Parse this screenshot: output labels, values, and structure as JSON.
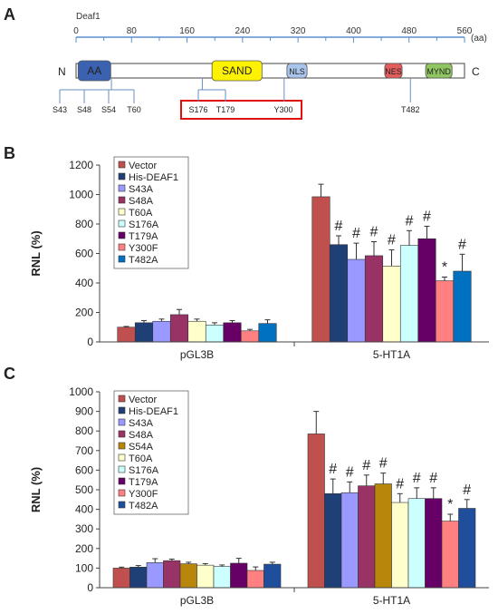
{
  "panel_a": {
    "letter": "A",
    "protein": "Deaf1",
    "unit": "(aa)",
    "scale_ticks": [
      0,
      80,
      160,
      240,
      320,
      400,
      480,
      560
    ],
    "scale_min": 0,
    "scale_max": 560,
    "n_term": "N",
    "c_term": "C",
    "domains": [
      {
        "name": "AA",
        "start": 3,
        "end": 50,
        "color": "#3a62b0",
        "text_color": "#ffffff"
      },
      {
        "name": "SAND",
        "start": 196,
        "end": 268,
        "color": "#fff200",
        "text_color": "#222222"
      },
      {
        "name": "NLS",
        "start": 304,
        "end": 333,
        "color": "#a9c5ec",
        "text_color": "#222222"
      },
      {
        "name": "NES",
        "start": 445,
        "end": 470,
        "color": "#e45c5c",
        "text_color": "#222222"
      },
      {
        "name": "MYND",
        "start": 504,
        "end": 542,
        "color": "#8fc661",
        "text_color": "#222222"
      }
    ],
    "sites": [
      {
        "label": "S43",
        "aa": 43,
        "group": "left"
      },
      {
        "label": "S48",
        "aa": 48,
        "group": "left"
      },
      {
        "label": "S54",
        "aa": 54,
        "group": "left"
      },
      {
        "label": "T60",
        "aa": 60,
        "group": "left"
      },
      {
        "label": "S176",
        "aa": 176,
        "group": "boxed"
      },
      {
        "label": "T179",
        "aa": 179,
        "group": "boxed"
      },
      {
        "label": "Y300",
        "aa": 300,
        "group": "boxed"
      },
      {
        "label": "T482",
        "aa": 482,
        "group": "right"
      }
    ]
  },
  "chart_data": [
    {
      "type": "bar",
      "panel": "B",
      "ylabel": "RNL (%)",
      "ylim": [
        0,
        1200
      ],
      "yticks": [
        0,
        200,
        400,
        600,
        800,
        1000,
        1200
      ],
      "categories": [
        "pGL3B",
        "5-HT1A"
      ],
      "series": [
        {
          "name": "Vector",
          "color": "#c0504d",
          "values": [
            100,
            985
          ],
          "errors": [
            5,
            85
          ],
          "marks": [
            "",
            ""
          ]
        },
        {
          "name": "His-DEAF1",
          "color": "#1f3f77",
          "values": [
            130,
            660
          ],
          "errors": [
            15,
            60
          ],
          "marks": [
            "",
            "#"
          ]
        },
        {
          "name": "S43A",
          "color": "#9999ff",
          "values": [
            140,
            560
          ],
          "errors": [
            15,
            110
          ],
          "marks": [
            "",
            "#"
          ]
        },
        {
          "name": "S48A",
          "color": "#993366",
          "values": [
            185,
            585
          ],
          "errors": [
            35,
            95
          ],
          "marks": [
            "",
            "#"
          ]
        },
        {
          "name": "T60A",
          "color": "#ffffcc",
          "values": [
            140,
            515
          ],
          "errors": [
            15,
            110
          ],
          "marks": [
            "",
            "#"
          ]
        },
        {
          "name": "S176A",
          "color": "#ccffff",
          "values": [
            115,
            655
          ],
          "errors": [
            15,
            100
          ],
          "marks": [
            "",
            "#"
          ]
        },
        {
          "name": "T179A",
          "color": "#660066",
          "values": [
            130,
            700
          ],
          "errors": [
            15,
            85
          ],
          "marks": [
            "",
            "#"
          ]
        },
        {
          "name": "Y300F",
          "color": "#ff8080",
          "values": [
            75,
            415
          ],
          "errors": [
            10,
            25
          ],
          "marks": [
            "",
            "*"
          ]
        },
        {
          "name": "T482A",
          "color": "#0070c0",
          "values": [
            125,
            480
          ],
          "errors": [
            25,
            115
          ],
          "marks": [
            "",
            "#"
          ]
        }
      ]
    },
    {
      "type": "bar",
      "panel": "C",
      "ylabel": "RNL (%)",
      "ylim": [
        0,
        1000
      ],
      "yticks": [
        0,
        100,
        200,
        300,
        400,
        500,
        600,
        700,
        800,
        900,
        1000
      ],
      "categories": [
        "pGL3B",
        "5-HT1A"
      ],
      "series": [
        {
          "name": "Vector",
          "color": "#c0504d",
          "values": [
            100,
            785
          ],
          "errors": [
            5,
            115
          ],
          "marks": [
            "",
            ""
          ]
        },
        {
          "name": "His-DEAF1",
          "color": "#1f3f77",
          "values": [
            105,
            480
          ],
          "errors": [
            8,
            75
          ],
          "marks": [
            "",
            "#"
          ]
        },
        {
          "name": "S43A",
          "color": "#9999ff",
          "values": [
            128,
            485
          ],
          "errors": [
            20,
            55
          ],
          "marks": [
            "",
            "#"
          ]
        },
        {
          "name": "S48A",
          "color": "#993366",
          "values": [
            138,
            520
          ],
          "errors": [
            8,
            55
          ],
          "marks": [
            "",
            "#"
          ]
        },
        {
          "name": "S54A",
          "color": "#b8860b",
          "values": [
            122,
            530
          ],
          "errors": [
            8,
            55
          ],
          "marks": [
            "",
            "#"
          ]
        },
        {
          "name": "T60A",
          "color": "#ffffcc",
          "values": [
            115,
            435
          ],
          "errors": [
            8,
            45
          ],
          "marks": [
            "",
            "#"
          ]
        },
        {
          "name": "S176A",
          "color": "#ccffff",
          "values": [
            108,
            455
          ],
          "errors": [
            8,
            55
          ],
          "marks": [
            "",
            "#"
          ]
        },
        {
          "name": "T179A",
          "color": "#660066",
          "values": [
            125,
            455
          ],
          "errors": [
            25,
            55
          ],
          "marks": [
            "",
            "#"
          ]
        },
        {
          "name": "Y300F",
          "color": "#ff8080",
          "values": [
            88,
            340
          ],
          "errors": [
            18,
            35
          ],
          "marks": [
            "",
            "*"
          ]
        },
        {
          "name": "T482A",
          "color": "#1f4e9c",
          "values": [
            120,
            405
          ],
          "errors": [
            10,
            45
          ],
          "marks": [
            "",
            "#"
          ]
        }
      ]
    }
  ]
}
